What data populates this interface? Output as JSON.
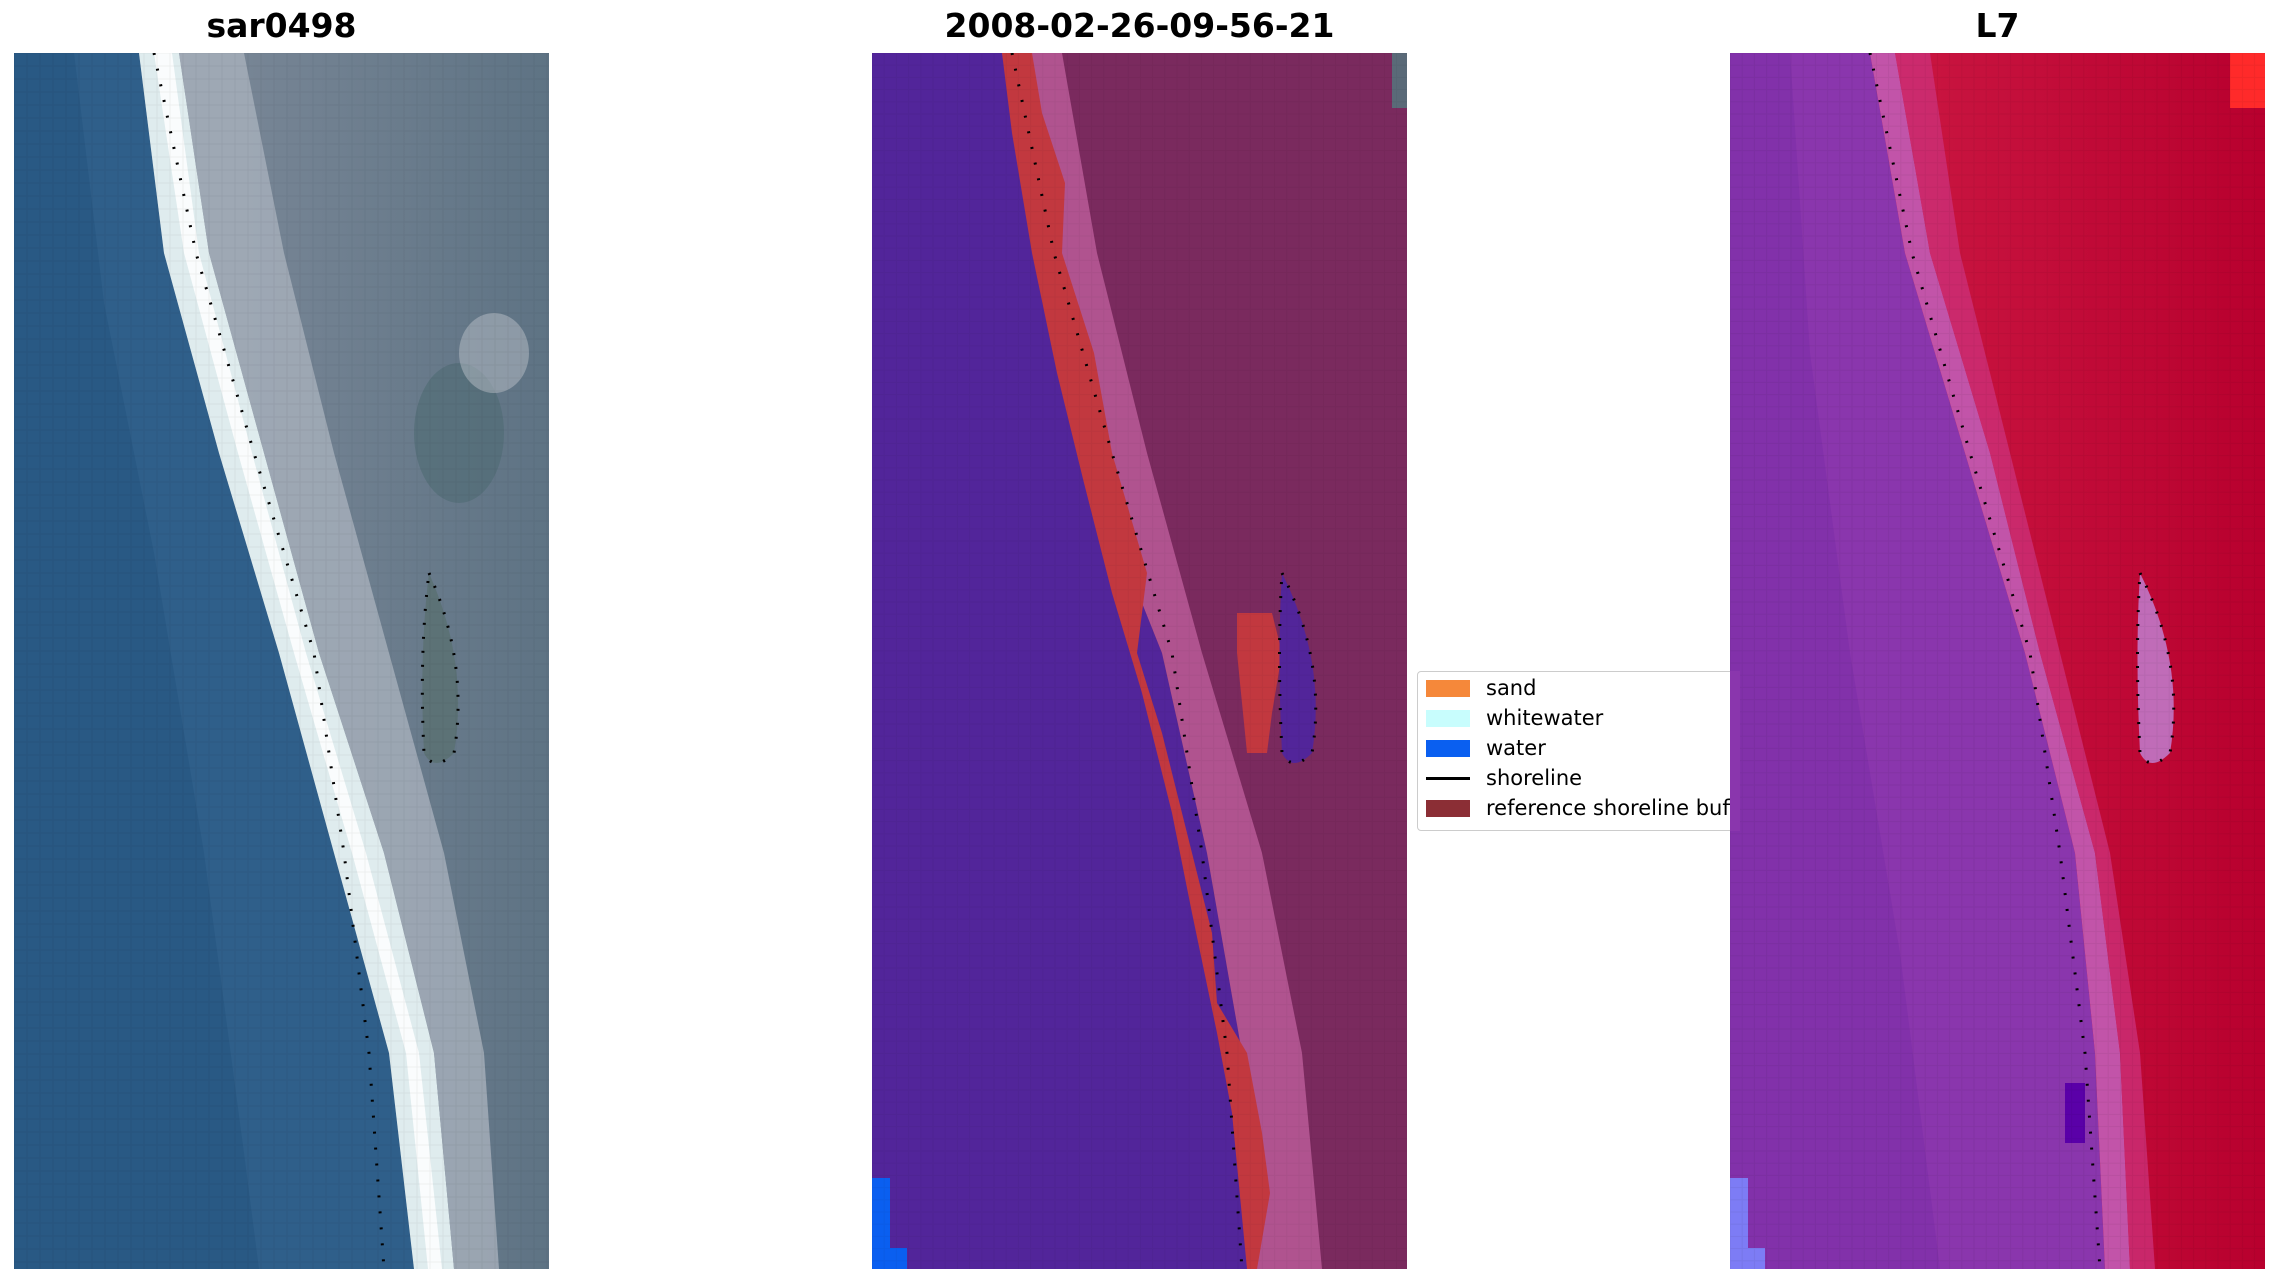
{
  "panels": [
    {
      "title": "sar0498"
    },
    {
      "title": "2008-02-26-09-56-21"
    },
    {
      "title": "L7"
    }
  ],
  "legend": {
    "items": [
      {
        "label": "sand",
        "color": "#f5883a",
        "kind": "patch"
      },
      {
        "label": "whitewater",
        "color": "#c8fdfd",
        "kind": "patch"
      },
      {
        "label": "water",
        "color": "#0a5ff0",
        "kind": "patch"
      },
      {
        "label": "shoreline",
        "color": "#000000",
        "kind": "line"
      },
      {
        "label": "reference shoreline buffer",
        "color": "#8b2e35",
        "kind": "patch"
      }
    ]
  },
  "colors": {
    "water_dark": "#2a5a86",
    "whitewater": "#e8f2f2",
    "land_grey": "#6f7a88",
    "classified_water": "#52259a",
    "classified_land": "#7d2b5e",
    "buffer_red": "#c2383f",
    "l7_purple": "#8e35b0",
    "l7_red": "#c0103a"
  }
}
